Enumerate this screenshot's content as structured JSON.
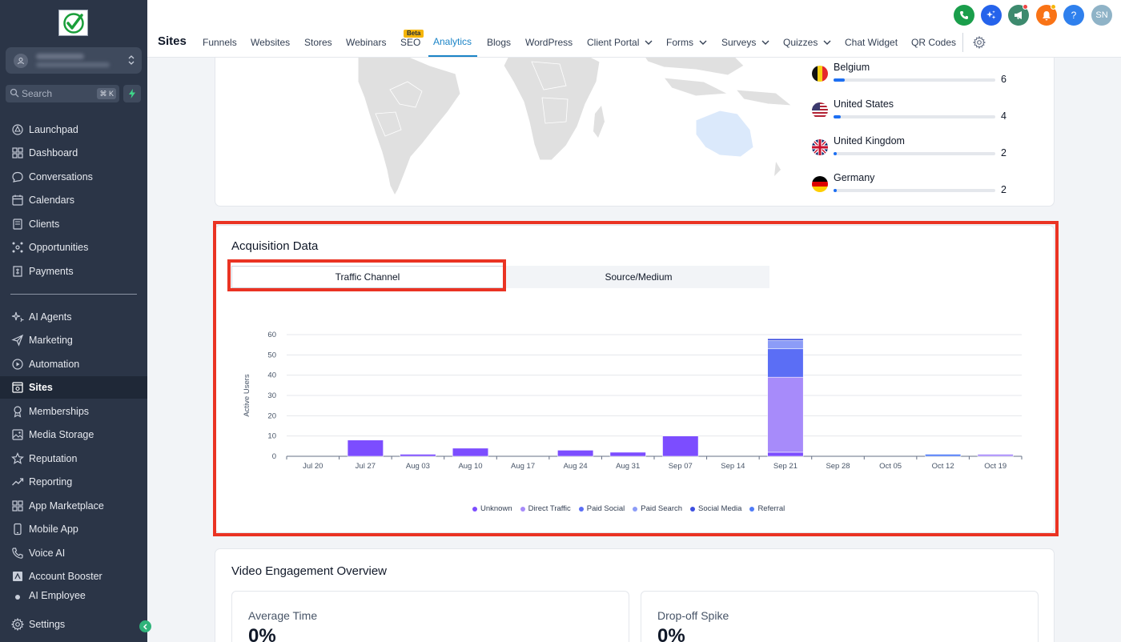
{
  "sidebar": {
    "search_placeholder": "Search",
    "search_shortcut": "⌘ K",
    "items": [
      {
        "label": "Launchpad",
        "icon": "launchpad-icon"
      },
      {
        "label": "Dashboard",
        "icon": "dashboard-icon"
      },
      {
        "label": "Conversations",
        "icon": "chat-icon"
      },
      {
        "label": "Calendars",
        "icon": "calendar-icon"
      },
      {
        "label": "Clients",
        "icon": "contacts-icon"
      },
      {
        "label": "Opportunities",
        "icon": "opportunities-icon"
      },
      {
        "label": "Payments",
        "icon": "payments-icon"
      },
      {
        "label": "AI Agents",
        "icon": "ai-sparkle-icon"
      },
      {
        "label": "Marketing",
        "icon": "send-icon"
      },
      {
        "label": "Automation",
        "icon": "automation-icon"
      },
      {
        "label": "Sites",
        "icon": "sites-icon"
      },
      {
        "label": "Memberships",
        "icon": "membership-icon"
      },
      {
        "label": "Media Storage",
        "icon": "media-icon"
      },
      {
        "label": "Reputation",
        "icon": "star-icon"
      },
      {
        "label": "Reporting",
        "icon": "trend-icon"
      },
      {
        "label": "App Marketplace",
        "icon": "apps-icon"
      },
      {
        "label": "Mobile App",
        "icon": "mobile-icon"
      },
      {
        "label": "Voice AI",
        "icon": "phone-icon"
      },
      {
        "label": "Account Booster",
        "icon": "booster-icon"
      },
      {
        "label": "AI Employee",
        "icon": "ai-employee-icon"
      },
      {
        "label": "Settings",
        "icon": "gear-icon"
      }
    ]
  },
  "topbar": {
    "title": "Sites",
    "beta_badge": "Beta",
    "tabs": [
      "Funnels",
      "Websites",
      "Stores",
      "Webinars",
      "SEO",
      "Analytics",
      "Blogs",
      "WordPress",
      "Client Portal",
      "Forms",
      "Surveys",
      "Quizzes",
      "Chat Widget",
      "QR Codes"
    ],
    "avatar_initials": "SN",
    "help_label": "?"
  },
  "countries": [
    {
      "name": "Belgium",
      "value": "6",
      "fraction": 0.07
    },
    {
      "name": "United States",
      "value": "4",
      "fraction": 0.045
    },
    {
      "name": "United Kingdom",
      "value": "2",
      "fraction": 0.02
    },
    {
      "name": "Germany",
      "value": "2",
      "fraction": 0.02
    }
  ],
  "acquisition": {
    "title": "Acquisition Data",
    "tab_traffic": "Traffic Channel",
    "tab_source": "Source/Medium"
  },
  "chart_data": {
    "type": "bar",
    "stacked": true,
    "ylabel": "Active Users",
    "ylim": [
      0,
      60
    ],
    "yticks": [
      0,
      10,
      20,
      30,
      40,
      50,
      60
    ],
    "categories": [
      "Jul 20",
      "Jul 27",
      "Aug 03",
      "Aug 10",
      "Aug 17",
      "Aug 24",
      "Aug 31",
      "Sep 07",
      "Sep 14",
      "Sep 21",
      "Sep 28",
      "Oct 05",
      "Oct 12",
      "Oct 19"
    ],
    "series": [
      {
        "name": "Unknown",
        "color": "#7c4dff",
        "values": [
          0,
          8,
          1,
          4,
          0,
          3,
          2,
          10,
          0,
          2,
          0,
          0,
          0,
          0
        ]
      },
      {
        "name": "Direct Traffic",
        "color": "#a78bfa",
        "values": [
          0,
          0,
          0,
          0,
          0,
          0,
          0,
          0,
          0,
          37,
          0,
          0,
          0,
          1
        ]
      },
      {
        "name": "Paid Social",
        "color": "#5b6ef5",
        "values": [
          0,
          0,
          0,
          0,
          0,
          0,
          0,
          0,
          0,
          14,
          0,
          0,
          0,
          0
        ]
      },
      {
        "name": "Paid Search",
        "color": "#8c9cf7",
        "values": [
          0,
          0,
          0,
          0,
          0,
          0,
          0,
          0,
          0,
          4,
          0,
          0,
          0,
          0
        ]
      },
      {
        "name": "Social Media",
        "color": "#3d4fe0",
        "values": [
          0,
          0,
          0,
          0,
          0,
          0,
          0,
          0,
          0,
          1,
          0,
          0,
          0,
          0
        ]
      },
      {
        "name": "Referral",
        "color": "#4f7bf7",
        "values": [
          0,
          0,
          0,
          0,
          0,
          0,
          0,
          0,
          0,
          0,
          0,
          0,
          1,
          0
        ]
      }
    ],
    "legend": "bottom"
  },
  "video": {
    "title": "Video Engagement Overview",
    "metrics": [
      {
        "label": "Average Time",
        "value": "0%"
      },
      {
        "label": "Drop-off Spike",
        "value": "0%"
      }
    ]
  }
}
